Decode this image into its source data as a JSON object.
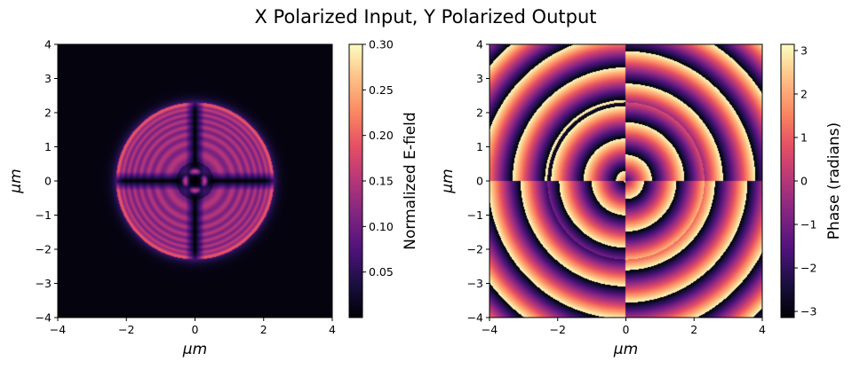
{
  "chart_data": [
    {
      "type": "heatmap",
      "suptitle": "X Polarized Input, Y Polarized Output",
      "title": "",
      "xlabel": "μm",
      "ylabel": "μm",
      "xlim": [
        -4,
        4
      ],
      "ylim": [
        -4,
        4
      ],
      "xticks": [
        "−4",
        "−2",
        "0",
        "2",
        "4"
      ],
      "yticks": [
        "−4",
        "−3",
        "−2",
        "−1",
        "0",
        "1",
        "2",
        "3",
        "4"
      ],
      "colormap": "magma",
      "colorbar": {
        "label": "Normalized E-field",
        "range": [
          0,
          0.3
        ],
        "ticks": [
          "0.05",
          "0.10",
          "0.15",
          "0.20",
          "0.25",
          "0.30"
        ]
      },
      "features": {
        "disk_radius_um": 2.3,
        "disk_level": 0.15,
        "rim_peak": 0.2,
        "dark_cross_along_axes": true,
        "central_lobes": 4,
        "background_level": 0.0
      }
    },
    {
      "type": "heatmap",
      "title": "",
      "xlabel": "μm",
      "ylabel": "μm",
      "xlim": [
        -4,
        4
      ],
      "ylim": [
        -4,
        4
      ],
      "xticks": [
        "−4",
        "−2",
        "0",
        "2",
        "4"
      ],
      "yticks": [
        "−4",
        "−3",
        "−2",
        "−1",
        "0",
        "1",
        "2",
        "3",
        "4"
      ],
      "colormap": "magma",
      "colorbar": {
        "label": "Phase (radians)",
        "range": [
          -3.14159,
          3.14159
        ],
        "ticks": [
          "−3",
          "−2",
          "−1",
          "0",
          "1",
          "2",
          "3"
        ]
      },
      "features": {
        "ring_period_um": 0.95,
        "inner_disk_radius_um": 2.3,
        "quadrant_phase_jumps": true,
        "pi_wrapped": true
      }
    }
  ]
}
